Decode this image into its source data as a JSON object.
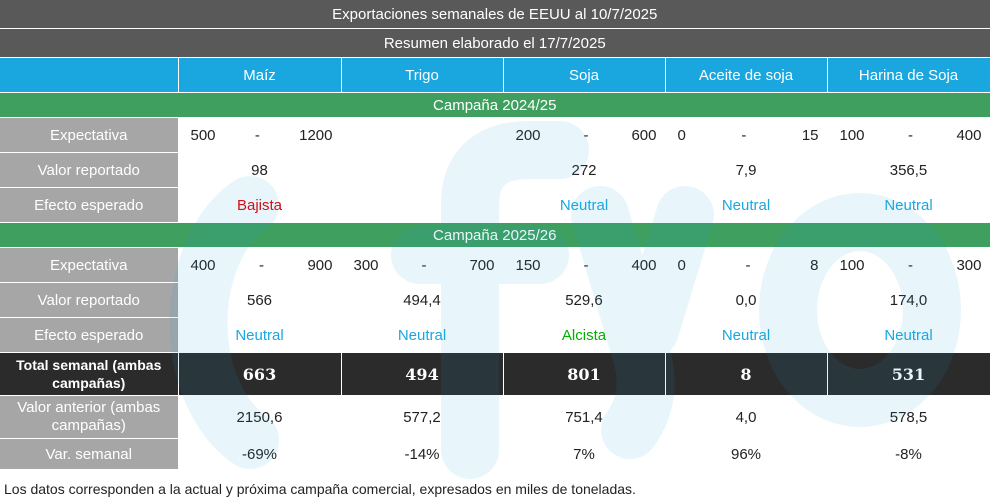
{
  "title": "Exportaciones semanales de EEUU al 10/7/2025",
  "subtitle": "Resumen elaborado el 17/7/2025",
  "columns": [
    "Maíz",
    "Trigo",
    "Soja",
    "Aceite de soja",
    "Harina de Soja"
  ],
  "row_labels": {
    "expectativa": "Expectativa",
    "valor_reportado": "Valor reportado",
    "efecto_esperado": "Efecto esperado",
    "total_semanal": "Total semanal (ambas campañas)",
    "valor_anterior": "Valor anterior (ambas campañas)",
    "var_semanal": "Var. semanal"
  },
  "campaign1": {
    "title": "Campaña 2024/25",
    "expectativa": [
      {
        "low": "500",
        "sep": "-",
        "high": "1200"
      },
      null,
      {
        "low": "200",
        "sep": "-",
        "high": "600"
      },
      {
        "low": "0",
        "sep": "-",
        "high": "15"
      },
      {
        "low": "100",
        "sep": "-",
        "high": "400"
      }
    ],
    "valor_reportado": [
      "98",
      "",
      "272",
      "7,9",
      "356,5"
    ],
    "efecto": [
      "Bajista",
      "",
      "Neutral",
      "Neutral",
      "Neutral"
    ]
  },
  "campaign2": {
    "title": "Campaña 2025/26",
    "expectativa": [
      {
        "low": "400",
        "sep": "-",
        "high": "900"
      },
      {
        "low": "300",
        "sep": "-",
        "high": "700"
      },
      {
        "low": "150",
        "sep": "-",
        "high": "400"
      },
      {
        "low": "0",
        "sep": "-",
        "high": "8"
      },
      {
        "low": "100",
        "sep": "-",
        "high": "300"
      }
    ],
    "valor_reportado": [
      "566",
      "494,4",
      "529,6",
      "0,0",
      "174,0"
    ],
    "efecto": [
      "Neutral",
      "Neutral",
      "Alcista",
      "Neutral",
      "Neutral"
    ]
  },
  "total_semanal": [
    "663",
    "494",
    "801",
    "8",
    "531"
  ],
  "valor_anterior": [
    "2150,6",
    "577,2",
    "751,4",
    "4,0",
    "578,5"
  ],
  "var_semanal": [
    "-69%",
    "-14%",
    "7%",
    "96%",
    "-8%"
  ],
  "watermark": "fyo",
  "footnote": "Los datos corresponden a la actual y próxima campaña comercial, expresados en miles de toneladas.",
  "colors": {
    "header": "#595959",
    "column_header": "#1aa7e0",
    "campaign_bar": "#3e9f5f",
    "label_cell": "#a6a6a6",
    "total_row": "#2b2b2b",
    "neutral": "#1aa7e0",
    "bajista": "#e00000",
    "alcista": "#00b000"
  }
}
